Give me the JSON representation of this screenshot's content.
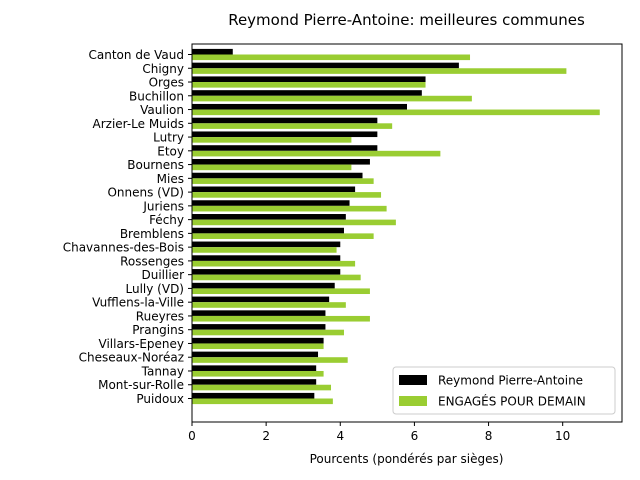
{
  "chart_data": {
    "type": "bar",
    "orientation": "horizontal",
    "title": "Reymond Pierre-Antoine: meilleures communes",
    "xlabel": "Pourcents (pondérés par sièges)",
    "ylabel": "",
    "xlim": [
      0,
      11.6
    ],
    "xticks": [
      "0",
      "2",
      "4",
      "6",
      "8",
      "10"
    ],
    "grid": false,
    "legend_position": "lower-right",
    "categories": [
      "Canton de Vaud",
      "Chigny",
      "Orges",
      "Buchillon",
      "Vaulion",
      "Arzier-Le Muids",
      "Lutry",
      "Etoy",
      "Bournens",
      "Mies",
      "Onnens (VD)",
      "Juriens",
      "Féchy",
      "Bremblens",
      "Chavannes-des-Bois",
      "Rossenges",
      "Duillier",
      "Lully (VD)",
      "Vufflens-la-Ville",
      "Rueyres",
      "Prangins",
      "Villars-Epeney",
      "Cheseaux-Noréaz",
      "Tannay",
      "Mont-sur-Rolle",
      "Puidoux"
    ],
    "series": [
      {
        "name": "Reymond Pierre-Antoine",
        "color": "#000000",
        "values": [
          1.1,
          7.2,
          6.3,
          6.2,
          5.8,
          5.0,
          5.0,
          5.0,
          4.8,
          4.6,
          4.4,
          4.25,
          4.15,
          4.1,
          4.0,
          4.0,
          4.0,
          3.85,
          3.7,
          3.6,
          3.6,
          3.55,
          3.4,
          3.35,
          3.35,
          3.3
        ]
      },
      {
        "name": "ENGAGÉS POUR DEMAIN",
        "color": "#9acd32",
        "values": [
          7.5,
          10.1,
          6.3,
          7.55,
          11.0,
          5.4,
          4.3,
          6.7,
          4.3,
          4.9,
          5.1,
          5.25,
          5.5,
          4.9,
          3.9,
          4.4,
          4.55,
          4.8,
          4.15,
          4.8,
          4.1,
          3.55,
          4.2,
          3.55,
          3.75,
          3.8
        ]
      }
    ]
  }
}
